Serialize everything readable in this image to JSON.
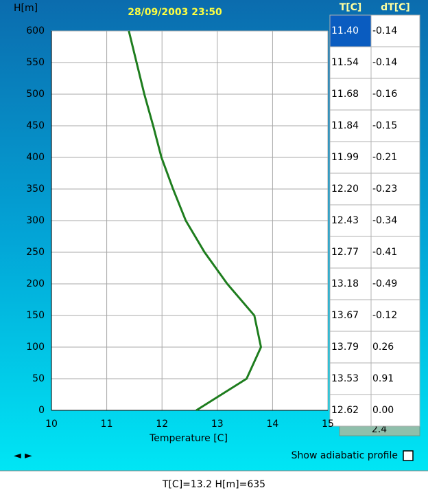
{
  "chart_data": {
    "type": "line",
    "title": "28/09/2003 23:50",
    "y_label": "H[m]",
    "x_label": "Temperature [C]",
    "x": [
      12.62,
      13.53,
      13.79,
      13.67,
      13.18,
      12.77,
      12.43,
      12.2,
      11.99,
      11.84,
      11.68,
      11.54,
      11.4
    ],
    "values": [
      0,
      50,
      100,
      150,
      200,
      250,
      300,
      350,
      400,
      450,
      500,
      550,
      600
    ],
    "color": "#1e7d1e",
    "xlim": [
      10,
      15
    ],
    "ylim": [
      0,
      600
    ],
    "xticks": [
      10,
      11,
      12,
      13,
      14,
      15
    ],
    "yticks": [
      0,
      50,
      100,
      150,
      200,
      250,
      300,
      350,
      400,
      450,
      500,
      550,
      600
    ],
    "grid": true
  },
  "table": {
    "headers": [
      "T[C]",
      "dT[C]"
    ],
    "rows": [
      [
        "11.40",
        "-0.14"
      ],
      [
        "11.54",
        "-0.14"
      ],
      [
        "11.68",
        "-0.16"
      ],
      [
        "11.84",
        "-0.15"
      ],
      [
        "11.99",
        "-0.21"
      ],
      [
        "12.20",
        "-0.23"
      ],
      [
        "12.43",
        "-0.34"
      ],
      [
        "12.77",
        "-0.41"
      ],
      [
        "13.18",
        "-0.49"
      ],
      [
        "13.67",
        "-0.12"
      ],
      [
        "13.79",
        "0.26"
      ],
      [
        "13.53",
        "0.91"
      ],
      [
        "12.62",
        "0.00"
      ]
    ],
    "selected": [
      0,
      0
    ]
  },
  "summary_value": "2.4",
  "controls": {
    "checkbox_label": "Show adiabatic profile",
    "checked": false
  },
  "status": "T[C]=13.2 H[m]=635"
}
